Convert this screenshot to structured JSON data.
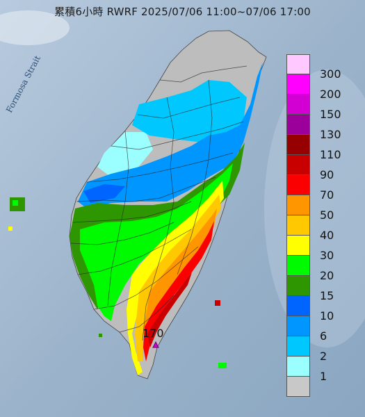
{
  "title": "累積6小時 RWRF 2025/07/06 11:00~07/06 17:00",
  "strait_label": "Formosa Strait",
  "max_value": "170",
  "legend": [
    {
      "label": "300",
      "color": "#ffc8ff"
    },
    {
      "label": "200",
      "color": "#ff00ff"
    },
    {
      "label": "150",
      "color": "#d200d2"
    },
    {
      "label": "130",
      "color": "#9b009b"
    },
    {
      "label": "110",
      "color": "#960000"
    },
    {
      "label": "90",
      "color": "#c80000"
    },
    {
      "label": "70",
      "color": "#fa0000"
    },
    {
      "label": "50",
      "color": "#ff9600"
    },
    {
      "label": "40",
      "color": "#ffc800"
    },
    {
      "label": "30",
      "color": "#ffff00"
    },
    {
      "label": "20",
      "color": "#00fa00"
    },
    {
      "label": "15",
      "color": "#2d9600"
    },
    {
      "label": "10",
      "color": "#0064ff"
    },
    {
      "label": "6",
      "color": "#0096ff"
    },
    {
      "label": "2",
      "color": "#00c8ff"
    },
    {
      "label": "1",
      "color": "#9bffff"
    },
    {
      "label": "",
      "color": "#c8c8c8"
    }
  ]
}
